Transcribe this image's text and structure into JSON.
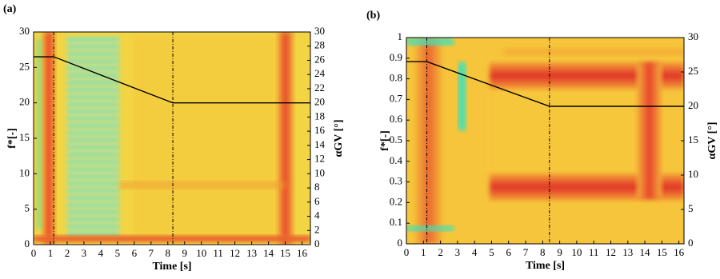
{
  "chart_data": [
    {
      "type": "line",
      "panel_label": "(a)",
      "x_label": "Time [s]",
      "y_label": "f*[-]",
      "y2_label": "αGV [°]",
      "xlim": [
        0,
        16.5
      ],
      "xticks": [
        0,
        1,
        2,
        3,
        4,
        5,
        6,
        7,
        8,
        9,
        10,
        11,
        12,
        13,
        14,
        15,
        16
      ],
      "ylim": [
        0,
        30
      ],
      "yticks": [
        0,
        5,
        10,
        15,
        20,
        25,
        30
      ],
      "y2lim": [
        0,
        30
      ],
      "y2ticks": [
        0,
        2,
        4,
        6,
        8,
        10,
        12,
        14,
        16,
        18,
        20,
        22,
        24,
        26,
        28,
        30
      ],
      "x": [
        0,
        1.2,
        8.3,
        16.5
      ],
      "series": [
        {
          "color": "#000000",
          "axis": "y2",
          "values": [
            26.5,
            26.5,
            20,
            20
          ]
        }
      ],
      "vlines": [
        1.2,
        8.3
      ]
    },
    {
      "type": "line",
      "panel_label": "(b)",
      "x_label": "Time [s]",
      "y_label": "f*[-]",
      "y2_label": "αGV [°]",
      "xlim": [
        0,
        16.3
      ],
      "xticks": [
        0,
        1,
        2,
        3,
        4,
        5,
        6,
        7,
        8,
        9,
        10,
        11,
        12,
        13,
        14,
        15,
        16
      ],
      "ylim": [
        0,
        1
      ],
      "yticks": [
        0,
        0.1,
        0.2,
        0.3,
        0.4,
        0.5,
        0.6,
        0.7,
        0.8,
        0.9,
        1
      ],
      "y2lim": [
        0,
        30
      ],
      "y2ticks": [
        0,
        5,
        10,
        15,
        20,
        25,
        30
      ],
      "x": [
        0,
        1.2,
        8.4,
        16.3
      ],
      "series": [
        {
          "color": "#000000",
          "axis": "y2",
          "values": [
            26.5,
            26.5,
            20,
            20
          ]
        }
      ],
      "vlines": [
        1.2,
        8.4
      ]
    }
  ]
}
